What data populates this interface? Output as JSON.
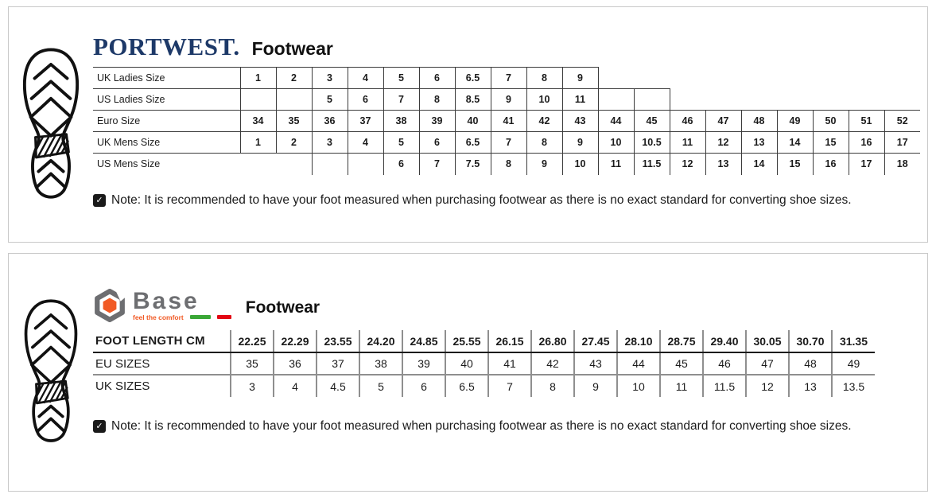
{
  "portwest": {
    "brand": "PORTWEST.",
    "title": "Footwear",
    "table": {
      "rows": [
        {
          "label": "UK Ladies Size",
          "cells": [
            "1",
            "2",
            "3",
            "4",
            "5",
            "6",
            "6.5",
            "7",
            "8",
            "9",
            null,
            null,
            null,
            null,
            null,
            null,
            null,
            null,
            null
          ]
        },
        {
          "label": "US Ladies Size",
          "cells": [
            "",
            "",
            "5",
            "6",
            "7",
            "8",
            "8.5",
            "9",
            "10",
            "11",
            "",
            "",
            null,
            null,
            null,
            null,
            null,
            null,
            null
          ]
        },
        {
          "label": "Euro Size",
          "cells": [
            "34",
            "35",
            "36",
            "37",
            "38",
            "39",
            "40",
            "41",
            "42",
            "43",
            "44",
            "45",
            "46",
            "47",
            "48",
            "49",
            "50",
            "51",
            "52"
          ]
        },
        {
          "label": "UK Mens Size",
          "cells": [
            "1",
            "2",
            "3",
            "4",
            "5",
            "6",
            "6.5",
            "7",
            "8",
            "9",
            "10",
            "10.5",
            "11",
            "12",
            "13",
            "14",
            "15",
            "16",
            "17"
          ]
        },
        {
          "label": "US Mens Size",
          "cells": [
            null,
            null,
            "",
            "",
            "6",
            "7",
            "7.5",
            "8",
            "9",
            "10",
            "11",
            "11.5",
            "12",
            "13",
            "14",
            "15",
            "16",
            "17",
            "18"
          ]
        }
      ]
    },
    "note": "Note: It is recommended to have your foot measured when purchasing footwear as there is no exact standard for converting shoe sizes."
  },
  "base": {
    "brand": "Base",
    "tagline": "feel the comfort",
    "title": "Footwear",
    "table": {
      "rows": [
        {
          "label": "FOOT LENGTH CM",
          "values": [
            "22.25",
            "22.29",
            "23.55",
            "24.20",
            "24.85",
            "25.55",
            "26.15",
            "26.80",
            "27.45",
            "28.10",
            "28.75",
            "29.40",
            "30.05",
            "30.70",
            "31.35"
          ]
        },
        {
          "label": "EU SIZES",
          "values": [
            "35",
            "36",
            "37",
            "38",
            "39",
            "40",
            "41",
            "42",
            "43",
            "44",
            "45",
            "46",
            "47",
            "48",
            "49"
          ]
        },
        {
          "label": "UK SIZES",
          "values": [
            "3",
            "4",
            "4.5",
            "5",
            "6",
            "6.5",
            "7",
            "8",
            "9",
            "10",
            "11",
            "11.5",
            "12",
            "13",
            "13.5"
          ]
        }
      ]
    },
    "note": "Note: It is recommended to have your foot measured when purchasing footwear as there is no exact standard for converting shoe sizes."
  },
  "icons": {
    "check": "✓"
  },
  "colors": {
    "portwest_navy": "#1d3968",
    "base_orange": "#f15a25",
    "base_gray": "#6d6e71",
    "flag_green": "#3aa737",
    "flag_red": "#e30613",
    "table_line_dark": "#3b3b3b",
    "table_line_gray": "#8f8f8f"
  }
}
